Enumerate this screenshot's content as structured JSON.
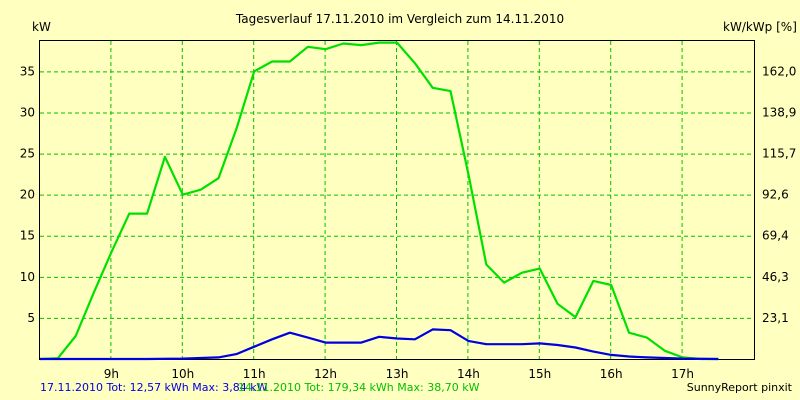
{
  "chart_data": {
    "type": "line",
    "title": "Tagesverlauf 17.11.2010 im Vergleich zum 14.11.2010",
    "ylabel_left": "kW",
    "ylabel_right": "kW/kWp [%]",
    "xlim": [
      8.0,
      18.0
    ],
    "ylim": [
      0,
      38.7
    ],
    "grid": true,
    "x_ticks": [
      {
        "value": 9,
        "label": "9h"
      },
      {
        "value": 10,
        "label": "10h"
      },
      {
        "value": 11,
        "label": "11h"
      },
      {
        "value": 12,
        "label": "12h"
      },
      {
        "value": 13,
        "label": "13h"
      },
      {
        "value": 14,
        "label": "14h"
      },
      {
        "value": 15,
        "label": "15h"
      },
      {
        "value": 16,
        "label": "16h"
      },
      {
        "value": 17,
        "label": "17h"
      }
    ],
    "y_ticks_left": [
      {
        "value": 5,
        "label": "5"
      },
      {
        "value": 10,
        "label": "10"
      },
      {
        "value": 15,
        "label": "15"
      },
      {
        "value": 20,
        "label": "20"
      },
      {
        "value": 25,
        "label": "25"
      },
      {
        "value": 30,
        "label": "30"
      },
      {
        "value": 35,
        "label": "35"
      }
    ],
    "y_ticks_right": [
      {
        "value": 5,
        "label": "23,1"
      },
      {
        "value": 10,
        "label": "46,3"
      },
      {
        "value": 15,
        "label": "69,4"
      },
      {
        "value": 20,
        "label": "92,6"
      },
      {
        "value": 25,
        "label": "115,7"
      },
      {
        "value": 30,
        "label": "138,9"
      },
      {
        "value": 35,
        "label": "162,0"
      }
    ],
    "series": [
      {
        "color": "#00e000",
        "points": [
          [
            8.0,
            0.0
          ],
          [
            8.25,
            0.1
          ],
          [
            8.5,
            2.8
          ],
          [
            8.75,
            8.0
          ],
          [
            9.0,
            13.0
          ],
          [
            9.25,
            17.7
          ],
          [
            9.5,
            17.7
          ],
          [
            9.75,
            24.6
          ],
          [
            10.0,
            20.0
          ],
          [
            10.25,
            20.6
          ],
          [
            10.5,
            22.0
          ],
          [
            10.75,
            28.0
          ],
          [
            11.0,
            35.0
          ],
          [
            11.25,
            36.2
          ],
          [
            11.5,
            36.2
          ],
          [
            11.75,
            38.0
          ],
          [
            12.0,
            37.7
          ],
          [
            12.25,
            38.4
          ],
          [
            12.5,
            38.2
          ],
          [
            12.75,
            38.5
          ],
          [
            13.0,
            38.5
          ],
          [
            13.25,
            36.0
          ],
          [
            13.5,
            33.0
          ],
          [
            13.75,
            32.6
          ],
          [
            14.0,
            22.5
          ],
          [
            14.25,
            11.5
          ],
          [
            14.5,
            9.3
          ],
          [
            14.75,
            10.5
          ],
          [
            15.0,
            11.0
          ],
          [
            15.25,
            6.7
          ],
          [
            15.5,
            5.1
          ],
          [
            15.75,
            9.5
          ],
          [
            16.0,
            9.0
          ],
          [
            16.25,
            3.2
          ],
          [
            16.5,
            2.6
          ],
          [
            16.75,
            1.0
          ],
          [
            17.0,
            0.2
          ],
          [
            17.25,
            0.0
          ],
          [
            17.5,
            0.0
          ]
        ]
      },
      {
        "color": "#0000e0",
        "points": [
          [
            8.0,
            0.0
          ],
          [
            8.5,
            0.0
          ],
          [
            9.0,
            0.0
          ],
          [
            9.5,
            0.0
          ],
          [
            10.0,
            0.05
          ],
          [
            10.5,
            0.2
          ],
          [
            10.75,
            0.6
          ],
          [
            11.0,
            1.5
          ],
          [
            11.25,
            2.4
          ],
          [
            11.5,
            3.2
          ],
          [
            11.75,
            2.6
          ],
          [
            12.0,
            2.0
          ],
          [
            12.25,
            2.0
          ],
          [
            12.5,
            2.0
          ],
          [
            12.75,
            2.7
          ],
          [
            13.0,
            2.5
          ],
          [
            13.25,
            2.4
          ],
          [
            13.5,
            3.6
          ],
          [
            13.75,
            3.5
          ],
          [
            14.0,
            2.2
          ],
          [
            14.25,
            1.8
          ],
          [
            14.5,
            1.8
          ],
          [
            14.75,
            1.8
          ],
          [
            15.0,
            1.9
          ],
          [
            15.25,
            1.7
          ],
          [
            15.5,
            1.4
          ],
          [
            15.75,
            0.9
          ],
          [
            16.0,
            0.5
          ],
          [
            16.25,
            0.3
          ],
          [
            16.5,
            0.2
          ],
          [
            17.0,
            0.05
          ],
          [
            17.5,
            0.0
          ]
        ]
      }
    ]
  },
  "footer": {
    "blue_text": "17.11.2010 Tot: 12,57 kWh Max: 3,84 kW",
    "green_text": "14.11.2010 Tot: 179,34 kWh Max: 38,70 kW",
    "credit": "SunnyReport pinxit"
  },
  "colors": {
    "background": "#ffffc0",
    "grid": "#00c000",
    "axis": "#000000",
    "blue": "#0000e0",
    "green": "#00e000"
  }
}
